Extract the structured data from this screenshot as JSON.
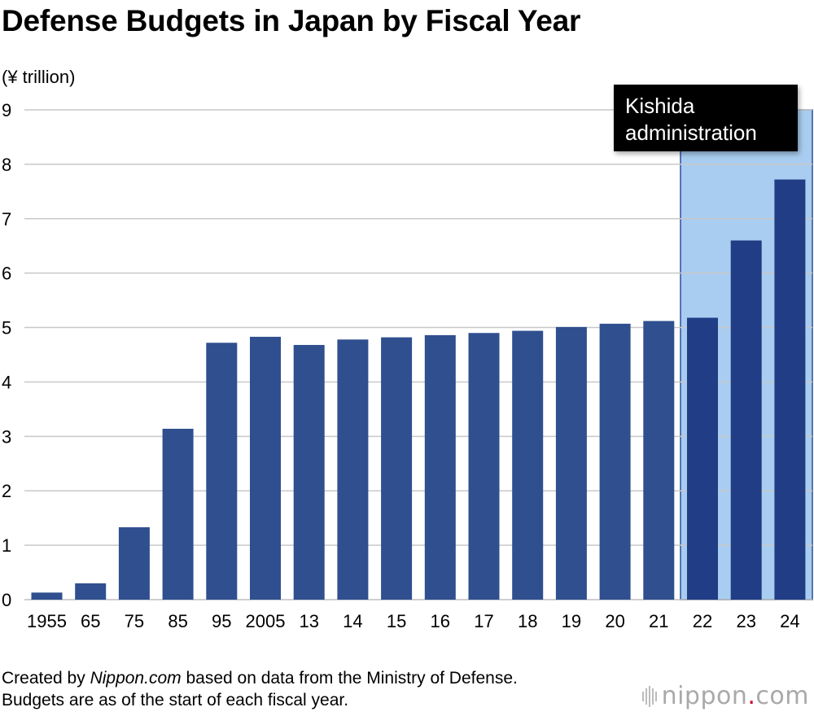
{
  "title": "Defense Budgets in Japan by Fiscal Year",
  "unit_label": "(¥ trillion)",
  "annotation": "Kishida\nadministration",
  "footer": {
    "line1_prefix": "Created by ",
    "source_name": "Nippon.com",
    "line1_suffix": " based on data from the Ministry of Defense.",
    "line2": "Budgets are as of the start of each fiscal year."
  },
  "logo": {
    "text": "nippon",
    "dot": ".",
    "tld": "com"
  },
  "colors": {
    "bar": "#2f4f8f",
    "bar_highlight": "#213d85",
    "highlight_bg": "#a9cdf0",
    "highlight_border": "#2b4f9a",
    "grid": "#c8c8c8"
  },
  "chart_data": {
    "type": "bar",
    "title": "Defense Budgets in Japan by Fiscal Year",
    "ylabel": "(¥ trillion)",
    "xlabel": "",
    "ylim": [
      0,
      9
    ],
    "yticks": [
      0,
      1,
      2,
      3,
      4,
      5,
      6,
      7,
      8,
      9
    ],
    "grid": true,
    "categories": [
      "1955",
      "65",
      "75",
      "85",
      "95",
      "2005",
      "13",
      "14",
      "15",
      "16",
      "17",
      "18",
      "19",
      "20",
      "21",
      "22",
      "23",
      "24"
    ],
    "values": [
      0.13,
      0.3,
      1.33,
      3.14,
      4.72,
      4.83,
      4.68,
      4.78,
      4.82,
      4.86,
      4.9,
      4.94,
      5.01,
      5.07,
      5.12,
      5.18,
      6.6,
      7.72
    ],
    "highlight": {
      "label": "Kishida administration",
      "from": "22",
      "to": "24"
    }
  }
}
